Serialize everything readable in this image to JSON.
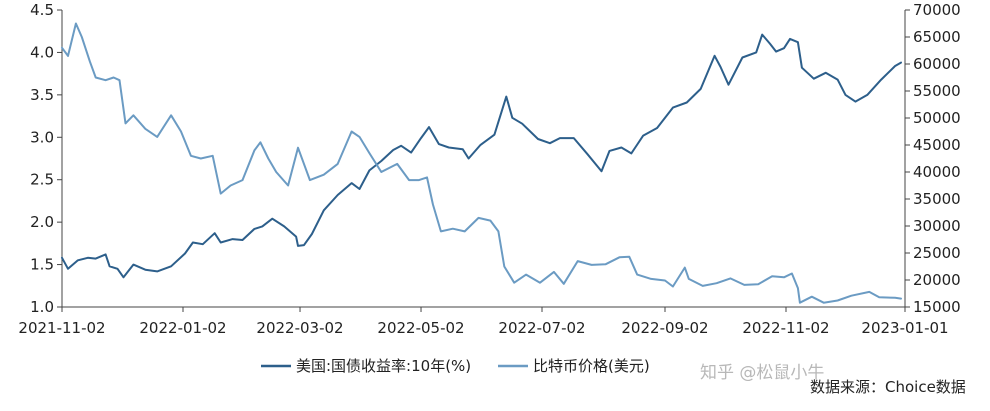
{
  "chart_data": {
    "type": "line",
    "x_tick_labels": [
      "2021-11-02",
      "2022-01-02",
      "2022-03-02",
      "2022-05-02",
      "2022-07-02",
      "2022-09-02",
      "2022-11-02",
      "2023-01-01"
    ],
    "left_axis": {
      "ylim": [
        1.0,
        4.5
      ],
      "tick_labels": [
        "1.0",
        "1.5",
        "2.0",
        "2.5",
        "3.0",
        "3.5",
        "4.0",
        "4.5"
      ]
    },
    "right_axis": {
      "ylim": [
        15000,
        70000
      ],
      "tick_labels": [
        "15000",
        "20000",
        "25000",
        "30000",
        "35000",
        "40000",
        "45000",
        "50000",
        "55000",
        "60000",
        "65000",
        "70000"
      ]
    },
    "grid": false,
    "legend_position": "bottom",
    "series": [
      {
        "name": "美国:国债收益率:10年(%)",
        "axis": "left",
        "color": "#2d5f8b",
        "points": [
          [
            "2021-11-02",
            1.58
          ],
          [
            "2021-11-05",
            1.45
          ],
          [
            "2021-11-10",
            1.55
          ],
          [
            "2021-11-15",
            1.58
          ],
          [
            "2021-11-19",
            1.57
          ],
          [
            "2021-11-24",
            1.62
          ],
          [
            "2021-11-26",
            1.48
          ],
          [
            "2021-11-30",
            1.45
          ],
          [
            "2021-12-03",
            1.35
          ],
          [
            "2021-12-08",
            1.5
          ],
          [
            "2021-12-14",
            1.44
          ],
          [
            "2021-12-20",
            1.42
          ],
          [
            "2021-12-27",
            1.48
          ],
          [
            "2022-01-03",
            1.63
          ],
          [
            "2022-01-07",
            1.76
          ],
          [
            "2022-01-12",
            1.74
          ],
          [
            "2022-01-18",
            1.87
          ],
          [
            "2022-01-21",
            1.76
          ],
          [
            "2022-01-27",
            1.8
          ],
          [
            "2022-02-01",
            1.79
          ],
          [
            "2022-02-07",
            1.92
          ],
          [
            "2022-02-11",
            1.95
          ],
          [
            "2022-02-16",
            2.04
          ],
          [
            "2022-02-22",
            1.95
          ],
          [
            "2022-02-28",
            1.83
          ],
          [
            "2022-03-01",
            1.72
          ],
          [
            "2022-03-04",
            1.73
          ],
          [
            "2022-03-08",
            1.86
          ],
          [
            "2022-03-14",
            2.14
          ],
          [
            "2022-03-21",
            2.32
          ],
          [
            "2022-03-28",
            2.46
          ],
          [
            "2022-04-01",
            2.39
          ],
          [
            "2022-04-06",
            2.61
          ],
          [
            "2022-04-12",
            2.72
          ],
          [
            "2022-04-18",
            2.85
          ],
          [
            "2022-04-22",
            2.9
          ],
          [
            "2022-04-27",
            2.82
          ],
          [
            "2022-05-02",
            2.99
          ],
          [
            "2022-05-06",
            3.12
          ],
          [
            "2022-05-11",
            2.92
          ],
          [
            "2022-05-16",
            2.88
          ],
          [
            "2022-05-23",
            2.86
          ],
          [
            "2022-05-26",
            2.75
          ],
          [
            "2022-06-01",
            2.91
          ],
          [
            "2022-06-08",
            3.03
          ],
          [
            "2022-06-14",
            3.48
          ],
          [
            "2022-06-17",
            3.23
          ],
          [
            "2022-06-22",
            3.16
          ],
          [
            "2022-06-30",
            2.98
          ],
          [
            "2022-07-06",
            2.93
          ],
          [
            "2022-07-11",
            2.99
          ],
          [
            "2022-07-18",
            2.99
          ],
          [
            "2022-07-25",
            2.8
          ],
          [
            "2022-08-01",
            2.6
          ],
          [
            "2022-08-05",
            2.84
          ],
          [
            "2022-08-11",
            2.88
          ],
          [
            "2022-08-16",
            2.81
          ],
          [
            "2022-08-22",
            3.02
          ],
          [
            "2022-08-29",
            3.11
          ],
          [
            "2022-09-06",
            3.35
          ],
          [
            "2022-09-13",
            3.41
          ],
          [
            "2022-09-20",
            3.57
          ],
          [
            "2022-09-27",
            3.96
          ],
          [
            "2022-09-30",
            3.83
          ],
          [
            "2022-10-04",
            3.62
          ],
          [
            "2022-10-11",
            3.94
          ],
          [
            "2022-10-18",
            4.0
          ],
          [
            "2022-10-21",
            4.21
          ],
          [
            "2022-10-25",
            4.1
          ],
          [
            "2022-10-28",
            4.01
          ],
          [
            "2022-11-01",
            4.05
          ],
          [
            "2022-11-04",
            4.16
          ],
          [
            "2022-11-08",
            4.12
          ],
          [
            "2022-11-10",
            3.82
          ],
          [
            "2022-11-16",
            3.69
          ],
          [
            "2022-11-22",
            3.76
          ],
          [
            "2022-11-28",
            3.68
          ],
          [
            "2022-12-02",
            3.5
          ],
          [
            "2022-12-07",
            3.42
          ],
          [
            "2022-12-13",
            3.5
          ],
          [
            "2022-12-20",
            3.68
          ],
          [
            "2022-12-27",
            3.84
          ],
          [
            "2022-12-30",
            3.88
          ]
        ]
      },
      {
        "name": "比特币价格(美元)",
        "axis": "right",
        "color": "#6b9bc3",
        "points": [
          [
            "2021-11-02",
            63000
          ],
          [
            "2021-11-05",
            61500
          ],
          [
            "2021-11-09",
            67500
          ],
          [
            "2021-11-12",
            65000
          ],
          [
            "2021-11-16",
            60500
          ],
          [
            "2021-11-19",
            57500
          ],
          [
            "2021-11-24",
            57000
          ],
          [
            "2021-11-28",
            57500
          ],
          [
            "2021-12-01",
            57000
          ],
          [
            "2021-12-04",
            49000
          ],
          [
            "2021-12-08",
            50500
          ],
          [
            "2021-12-14",
            48000
          ],
          [
            "2021-12-20",
            46500
          ],
          [
            "2021-12-27",
            50500
          ],
          [
            "2022-01-01",
            47500
          ],
          [
            "2022-01-06",
            43000
          ],
          [
            "2022-01-11",
            42500
          ],
          [
            "2022-01-17",
            43000
          ],
          [
            "2022-01-21",
            36000
          ],
          [
            "2022-01-26",
            37500
          ],
          [
            "2022-02-01",
            38500
          ],
          [
            "2022-02-07",
            44000
          ],
          [
            "2022-02-10",
            45500
          ],
          [
            "2022-02-14",
            42500
          ],
          [
            "2022-02-18",
            40000
          ],
          [
            "2022-02-24",
            37500
          ],
          [
            "2022-03-01",
            44500
          ],
          [
            "2022-03-07",
            38500
          ],
          [
            "2022-03-14",
            39500
          ],
          [
            "2022-03-21",
            41500
          ],
          [
            "2022-03-28",
            47500
          ],
          [
            "2022-04-01",
            46500
          ],
          [
            "2022-04-06",
            43500
          ],
          [
            "2022-04-12",
            40000
          ],
          [
            "2022-04-20",
            41500
          ],
          [
            "2022-04-26",
            38500
          ],
          [
            "2022-05-01",
            38500
          ],
          [
            "2022-05-05",
            39000
          ],
          [
            "2022-05-08",
            34000
          ],
          [
            "2022-05-12",
            29000
          ],
          [
            "2022-05-18",
            29500
          ],
          [
            "2022-05-24",
            29000
          ],
          [
            "2022-05-31",
            31500
          ],
          [
            "2022-06-06",
            31000
          ],
          [
            "2022-06-10",
            29000
          ],
          [
            "2022-06-13",
            22500
          ],
          [
            "2022-06-18",
            19500
          ],
          [
            "2022-06-24",
            21000
          ],
          [
            "2022-07-01",
            19500
          ],
          [
            "2022-07-08",
            21500
          ],
          [
            "2022-07-13",
            19300
          ],
          [
            "2022-07-20",
            23500
          ],
          [
            "2022-07-27",
            22800
          ],
          [
            "2022-08-03",
            22900
          ],
          [
            "2022-08-10",
            24200
          ],
          [
            "2022-08-15",
            24300
          ],
          [
            "2022-08-19",
            21000
          ],
          [
            "2022-08-26",
            20200
          ],
          [
            "2022-09-02",
            19900
          ],
          [
            "2022-09-06",
            18800
          ],
          [
            "2022-09-12",
            22300
          ],
          [
            "2022-09-14",
            20200
          ],
          [
            "2022-09-21",
            18900
          ],
          [
            "2022-09-28",
            19400
          ],
          [
            "2022-10-05",
            20300
          ],
          [
            "2022-10-12",
            19100
          ],
          [
            "2022-10-19",
            19200
          ],
          [
            "2022-10-26",
            20700
          ],
          [
            "2022-11-01",
            20500
          ],
          [
            "2022-11-05",
            21200
          ],
          [
            "2022-11-08",
            18500
          ],
          [
            "2022-11-09",
            15800
          ],
          [
            "2022-11-15",
            16900
          ],
          [
            "2022-11-21",
            15800
          ],
          [
            "2022-11-28",
            16200
          ],
          [
            "2022-12-05",
            17100
          ],
          [
            "2022-12-14",
            17800
          ],
          [
            "2022-12-19",
            16800
          ],
          [
            "2022-12-27",
            16700
          ],
          [
            "2022-12-30",
            16550
          ]
        ]
      }
    ],
    "source_note": "数据来源：Choice数据"
  },
  "watermark": "知乎 @松鼠小牛"
}
